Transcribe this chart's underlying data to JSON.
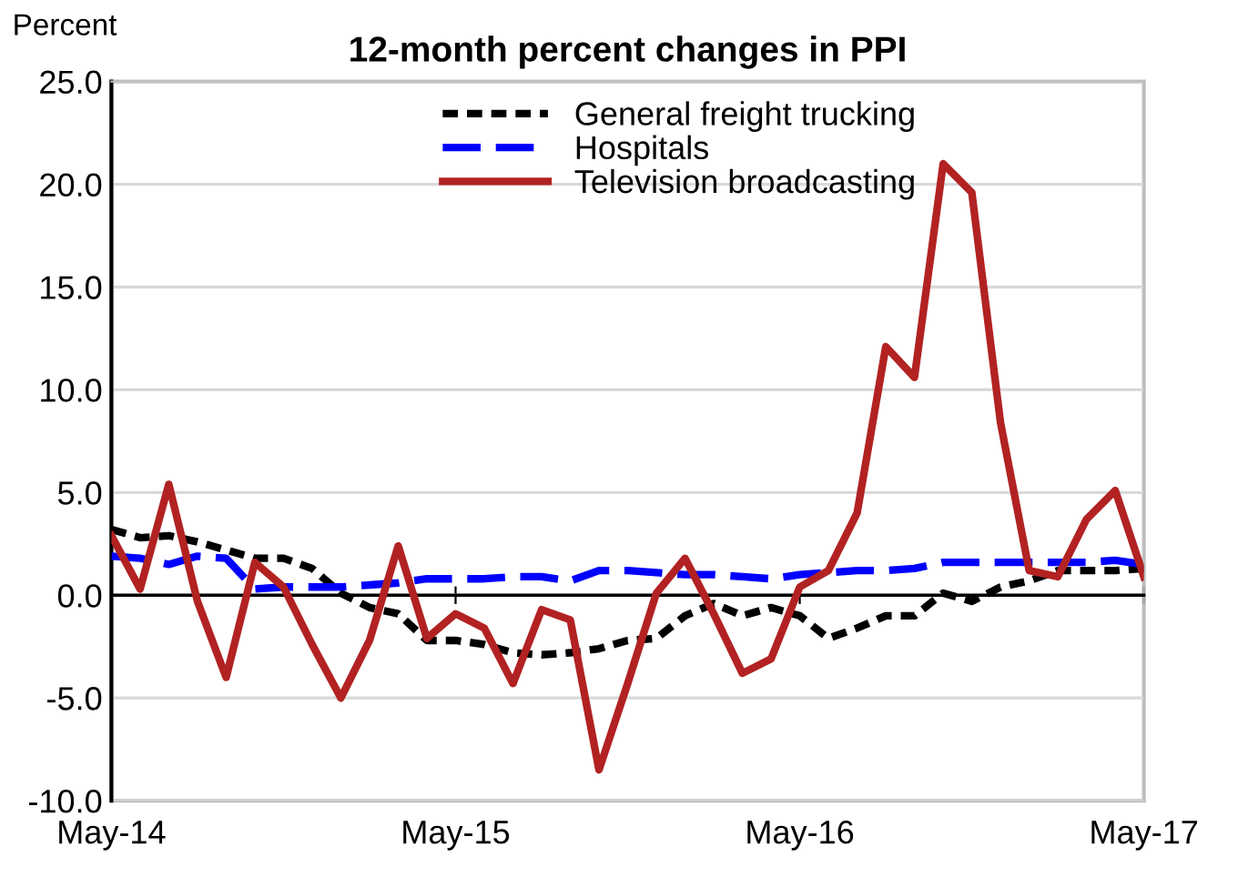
{
  "chart_data": {
    "type": "line",
    "title": "12-month percent changes in PPI",
    "ylabel": "Percent",
    "categories": [
      "May-14",
      null,
      null,
      null,
      null,
      null,
      null,
      null,
      null,
      null,
      null,
      null,
      "May-15",
      null,
      null,
      null,
      null,
      null,
      null,
      null,
      null,
      null,
      null,
      null,
      "May-16",
      null,
      null,
      null,
      null,
      null,
      null,
      null,
      null,
      null,
      null,
      null,
      "May-17"
    ],
    "series": [
      {
        "name": "General freight trucking",
        "color": "#000000",
        "line_style": "dashed",
        "values": [
          3.2,
          2.8,
          2.9,
          2.6,
          2.2,
          1.8,
          1.8,
          1.3,
          0.1,
          -0.6,
          -0.9,
          -2.2,
          -2.2,
          -2.4,
          -2.8,
          -2.9,
          -2.8,
          -2.6,
          -2.2,
          -2.1,
          -1.0,
          -0.4,
          -1.0,
          -0.6,
          -1.0,
          -2.1,
          -1.6,
          -1.0,
          -1.0,
          0.1,
          -0.3,
          0.4,
          0.7,
          1.2,
          1.2,
          1.2,
          1.3
        ]
      },
      {
        "name": "Hospitals",
        "color": "#0000ff",
        "line_style": "dashed",
        "values": [
          1.9,
          1.8,
          1.5,
          1.9,
          1.8,
          0.3,
          0.4,
          0.4,
          0.4,
          0.5,
          0.6,
          0.8,
          0.8,
          0.8,
          0.9,
          0.9,
          0.7,
          1.2,
          1.2,
          1.1,
          1.0,
          1.0,
          0.9,
          0.8,
          1.0,
          1.1,
          1.2,
          1.2,
          1.3,
          1.6,
          1.6,
          1.6,
          1.6,
          1.6,
          1.6,
          1.7,
          1.5
        ]
      },
      {
        "name": "Television broadcasting",
        "color": "#b22222",
        "line_style": "solid",
        "values": [
          2.9,
          0.3,
          5.4,
          -0.3,
          -4.0,
          1.6,
          0.4,
          -2.4,
          -5.0,
          -2.2,
          2.4,
          -2.1,
          -0.9,
          -1.6,
          -4.3,
          -0.7,
          -1.2,
          -8.5,
          -4.3,
          0.1,
          1.8,
          -0.9,
          -3.8,
          -3.1,
          0.4,
          1.2,
          4.0,
          12.1,
          10.6,
          21.0,
          19.6,
          8.4,
          1.2,
          0.9,
          3.7,
          5.1,
          0.9
        ]
      }
    ],
    "ylim": [
      -10,
      25
    ],
    "yticks": [
      {
        "value": -10,
        "label": "-10.0"
      },
      {
        "value": -5,
        "label": "-5.0"
      },
      {
        "value": 0,
        "label": "0.0"
      },
      {
        "value": 5,
        "label": "5.0"
      },
      {
        "value": 10,
        "label": "10.0"
      },
      {
        "value": 15,
        "label": "15.0"
      },
      {
        "value": 20,
        "label": "20.0"
      },
      {
        "value": 25,
        "label": "25.0"
      }
    ],
    "grid": "y",
    "legend": "top",
    "marker": "none"
  }
}
